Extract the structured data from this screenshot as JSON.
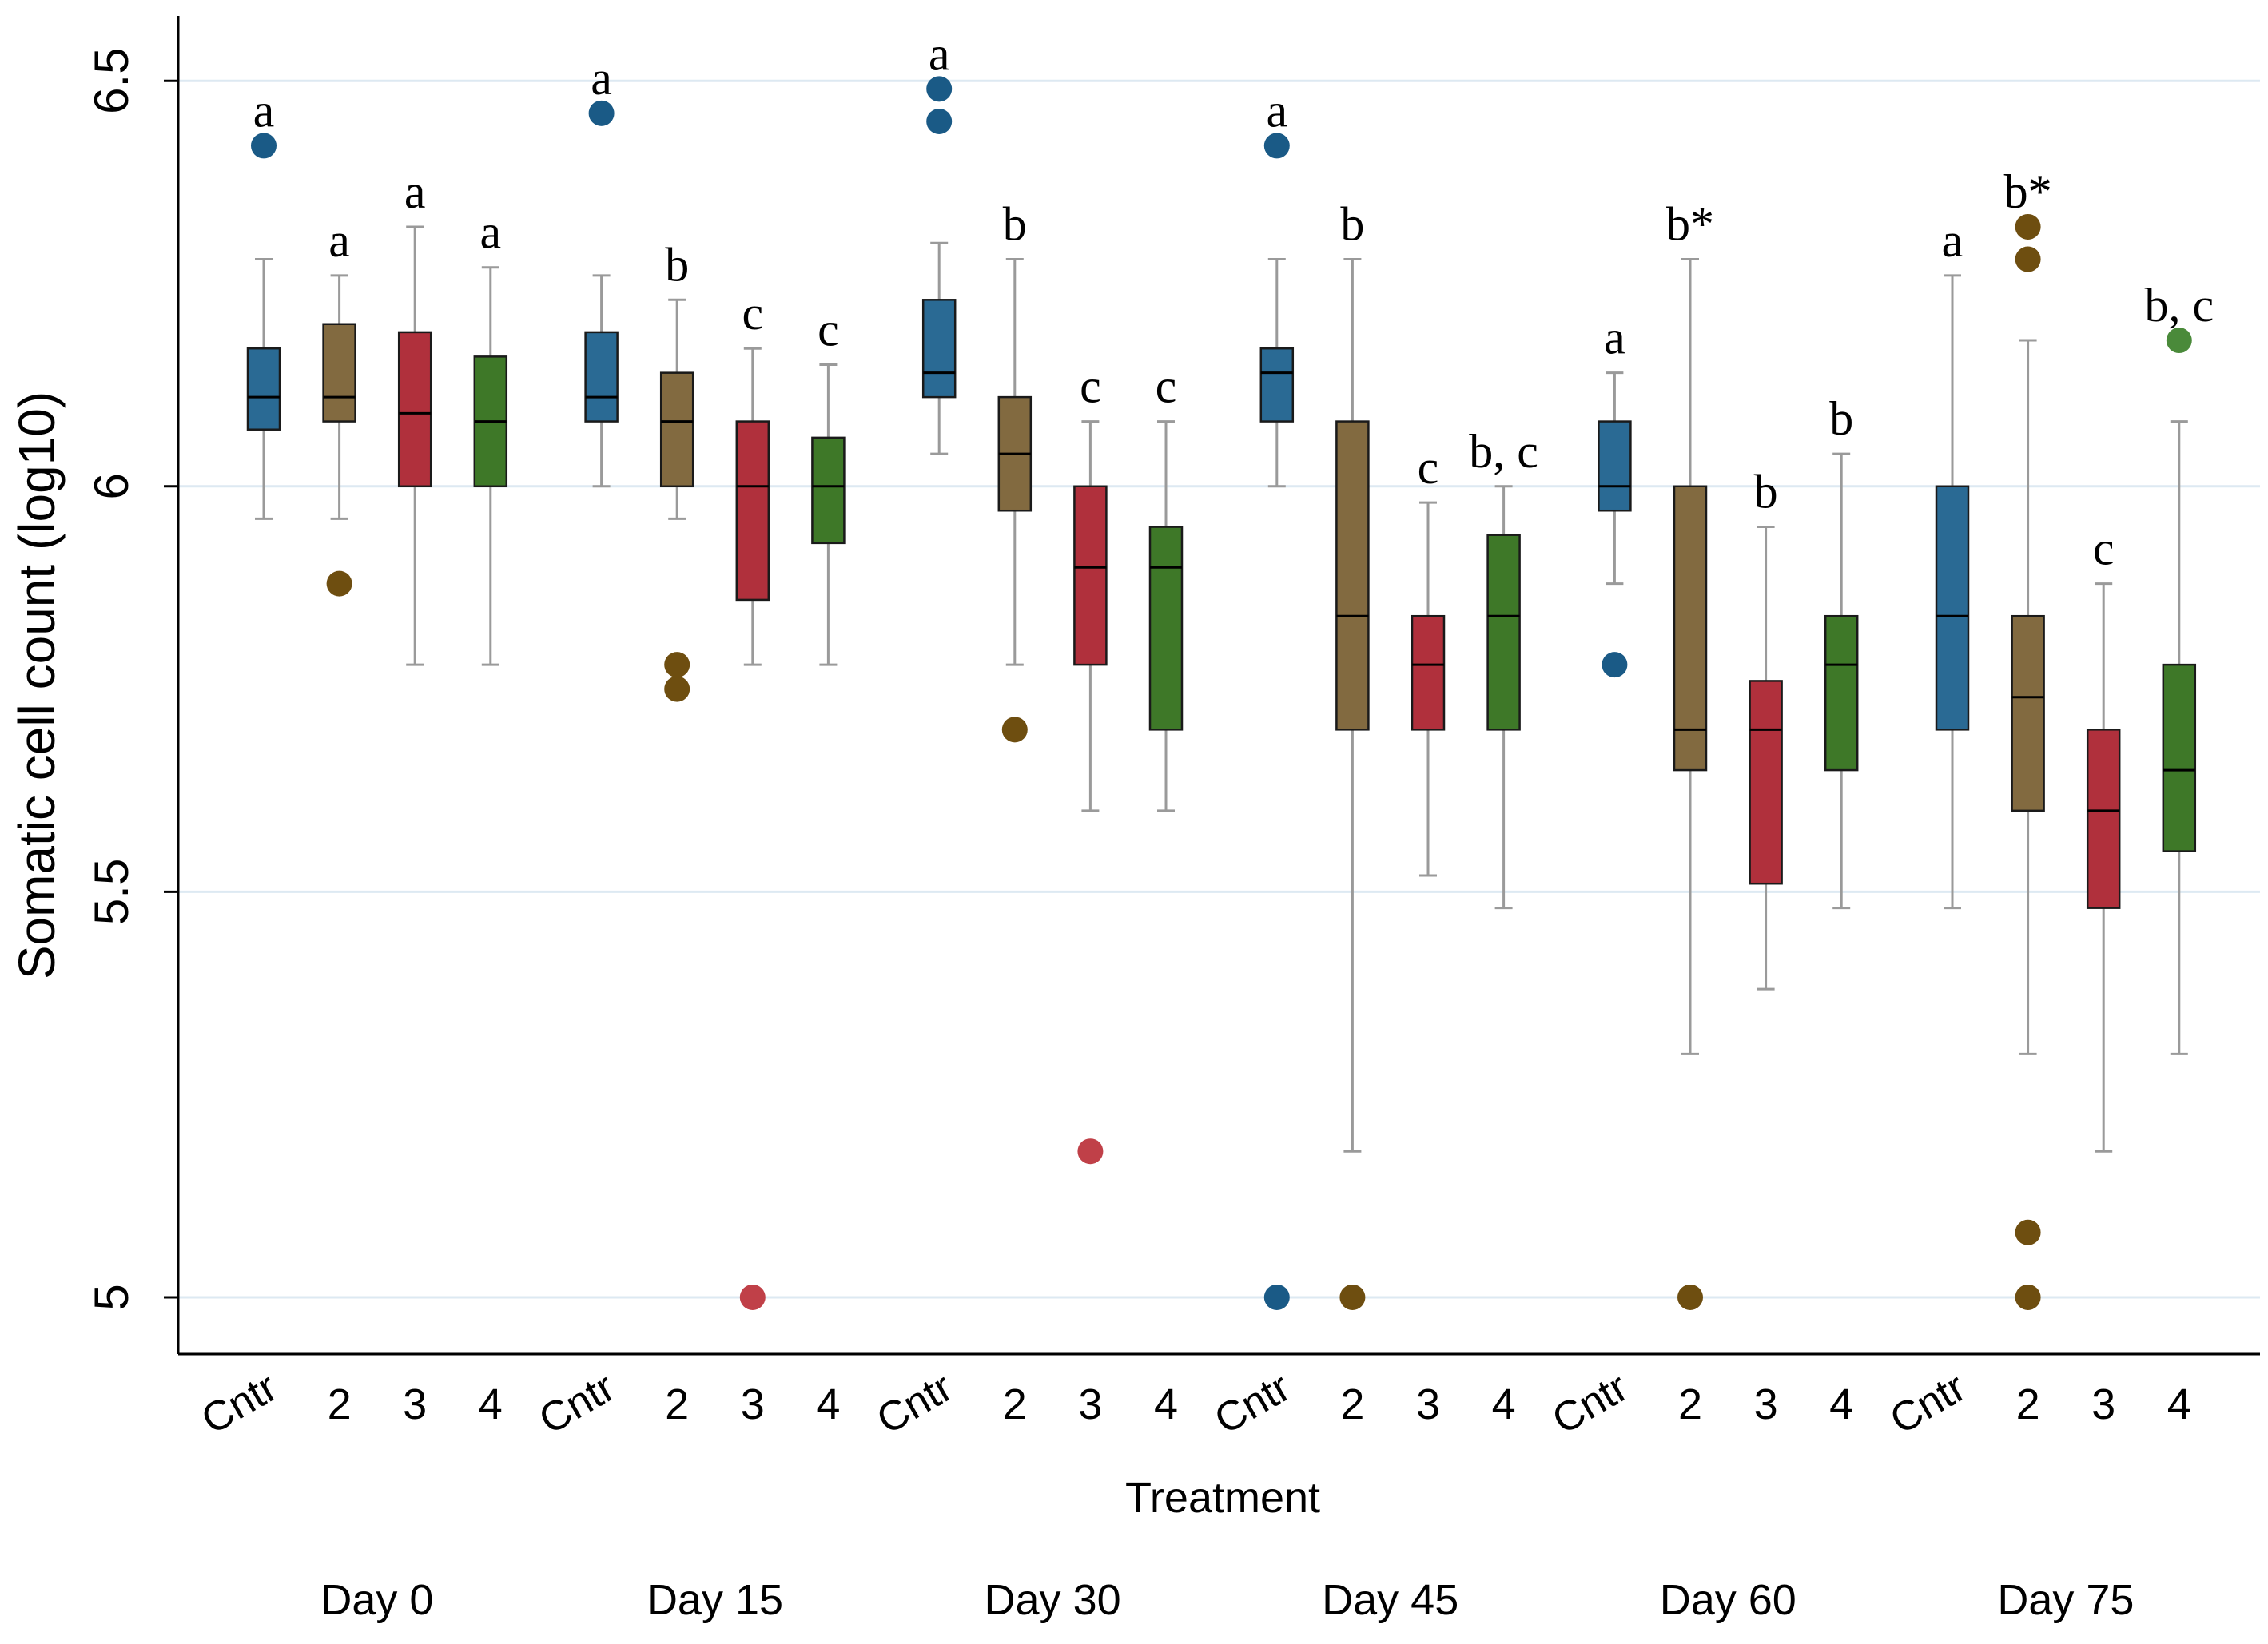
{
  "chart_data": {
    "type": "boxplot",
    "title": "",
    "xlabel": "Treatment",
    "ylabel": "Somatic cell count (log10)",
    "ylim": [
      4.93,
      6.58
    ],
    "yticks": [
      {
        "value": 5,
        "label": "5"
      },
      {
        "value": 5.5,
        "label": "5.5"
      },
      {
        "value": 6,
        "label": "6"
      },
      {
        "value": 6.5,
        "label": "6.5"
      }
    ],
    "grid": true,
    "colors": {
      "Cntr": "#2a6a94",
      "2": "#826a40",
      "3": "#b0303c",
      "4": "#3e7828",
      "grid": "#dde9f2",
      "whisker": "#9a9a9a",
      "axis": "#000000"
    },
    "outlier_colors": {
      "Cntr": "#1a5a86",
      "2": "#6e4e10",
      "3": "#c04048",
      "4": "#4a8a3a"
    },
    "groups": [
      {
        "label": "Day 0",
        "boxes": [
          {
            "treatment": "Cntr",
            "whisker_low": 5.96,
            "q1": 6.07,
            "median": 6.11,
            "q3": 6.17,
            "whisker_high": 6.28,
            "outliers": [
              6.42
            ],
            "letter": "a"
          },
          {
            "treatment": "2",
            "whisker_low": 5.96,
            "q1": 6.08,
            "median": 6.11,
            "q3": 6.2,
            "whisker_high": 6.26,
            "outliers": [
              5.88
            ],
            "letter": "a"
          },
          {
            "treatment": "3",
            "whisker_low": 5.78,
            "q1": 6.0,
            "median": 6.09,
            "q3": 6.19,
            "whisker_high": 6.32,
            "outliers": [],
            "letter": "a"
          },
          {
            "treatment": "4",
            "whisker_low": 5.78,
            "q1": 6.0,
            "median": 6.08,
            "q3": 6.16,
            "whisker_high": 6.27,
            "outliers": [],
            "letter": "a"
          }
        ]
      },
      {
        "label": "Day 15",
        "boxes": [
          {
            "treatment": "Cntr",
            "whisker_low": 6.0,
            "q1": 6.08,
            "median": 6.11,
            "q3": 6.19,
            "whisker_high": 6.26,
            "outliers": [
              6.46
            ],
            "letter": "a"
          },
          {
            "treatment": "2",
            "whisker_low": 5.96,
            "q1": 6.0,
            "median": 6.08,
            "q3": 6.14,
            "whisker_high": 6.23,
            "outliers": [
              5.78,
              5.75
            ],
            "letter": "b"
          },
          {
            "treatment": "3",
            "whisker_low": 5.78,
            "q1": 5.86,
            "median": 6.0,
            "q3": 6.08,
            "whisker_high": 6.17,
            "outliers": [
              5.0
            ],
            "letter": "c"
          },
          {
            "treatment": "4",
            "whisker_low": 5.78,
            "q1": 5.93,
            "median": 6.0,
            "q3": 6.06,
            "whisker_high": 6.15,
            "outliers": [],
            "letter": "c"
          }
        ]
      },
      {
        "label": "Day 30",
        "boxes": [
          {
            "treatment": "Cntr",
            "whisker_low": 6.04,
            "q1": 6.11,
            "median": 6.14,
            "q3": 6.23,
            "whisker_high": 6.3,
            "outliers": [
              6.49,
              6.45
            ],
            "letter": "a"
          },
          {
            "treatment": "2",
            "whisker_low": 5.78,
            "q1": 5.97,
            "median": 6.04,
            "q3": 6.11,
            "whisker_high": 6.28,
            "outliers": [
              5.7
            ],
            "letter": "b"
          },
          {
            "treatment": "3",
            "whisker_low": 5.6,
            "q1": 5.78,
            "median": 5.9,
            "q3": 6.0,
            "whisker_high": 6.08,
            "outliers": [
              5.18
            ],
            "letter": "c"
          },
          {
            "treatment": "4",
            "whisker_low": 5.6,
            "q1": 5.7,
            "median": 5.9,
            "q3": 5.95,
            "whisker_high": 6.08,
            "outliers": [],
            "letter": "c"
          }
        ]
      },
      {
        "label": "Day 45",
        "boxes": [
          {
            "treatment": "Cntr",
            "whisker_low": 6.0,
            "q1": 6.08,
            "median": 6.14,
            "q3": 6.17,
            "whisker_high": 6.28,
            "outliers": [
              6.42,
              5.0
            ],
            "letter": "a"
          },
          {
            "treatment": "2",
            "whisker_low": 5.18,
            "q1": 5.7,
            "median": 5.84,
            "q3": 6.08,
            "whisker_high": 6.28,
            "outliers": [
              5.0
            ],
            "letter": "b"
          },
          {
            "treatment": "3",
            "whisker_low": 5.52,
            "q1": 5.7,
            "median": 5.78,
            "q3": 5.84,
            "whisker_high": 5.98,
            "outliers": [],
            "letter": "c"
          },
          {
            "treatment": "4",
            "whisker_low": 5.48,
            "q1": 5.7,
            "median": 5.84,
            "q3": 5.94,
            "whisker_high": 6.0,
            "outliers": [],
            "letter": "b, c"
          }
        ]
      },
      {
        "label": "Day 60",
        "boxes": [
          {
            "treatment": "Cntr",
            "whisker_low": 5.88,
            "q1": 5.97,
            "median": 6.0,
            "q3": 6.08,
            "whisker_high": 6.14,
            "outliers": [
              5.78
            ],
            "letter": "a"
          },
          {
            "treatment": "2",
            "whisker_low": 5.3,
            "q1": 5.65,
            "median": 5.7,
            "q3": 6.0,
            "whisker_high": 6.28,
            "outliers": [
              5.0
            ],
            "letter": "b*"
          },
          {
            "treatment": "3",
            "whisker_low": 5.38,
            "q1": 5.51,
            "median": 5.7,
            "q3": 5.76,
            "whisker_high": 5.95,
            "outliers": [],
            "letter": "b"
          },
          {
            "treatment": "4",
            "whisker_low": 5.48,
            "q1": 5.65,
            "median": 5.78,
            "q3": 5.84,
            "whisker_high": 6.04,
            "outliers": [],
            "letter": "b"
          }
        ]
      },
      {
        "label": "Day 75",
        "boxes": [
          {
            "treatment": "Cntr",
            "whisker_low": 5.48,
            "q1": 5.7,
            "median": 5.84,
            "q3": 6.0,
            "whisker_high": 6.26,
            "outliers": [],
            "letter": "a"
          },
          {
            "treatment": "2",
            "whisker_low": 5.3,
            "q1": 5.6,
            "median": 5.74,
            "q3": 5.84,
            "whisker_high": 6.18,
            "outliers": [
              6.32,
              6.28,
              5.08,
              5.0
            ],
            "letter": "b*"
          },
          {
            "treatment": "3",
            "whisker_low": 5.18,
            "q1": 5.48,
            "median": 5.6,
            "q3": 5.7,
            "whisker_high": 5.88,
            "outliers": [],
            "letter": "c"
          },
          {
            "treatment": "4",
            "whisker_low": 5.3,
            "q1": 5.55,
            "median": 5.65,
            "q3": 5.78,
            "whisker_high": 6.08,
            "outliers": [
              6.18
            ],
            "letter": "b, c"
          }
        ]
      }
    ]
  }
}
